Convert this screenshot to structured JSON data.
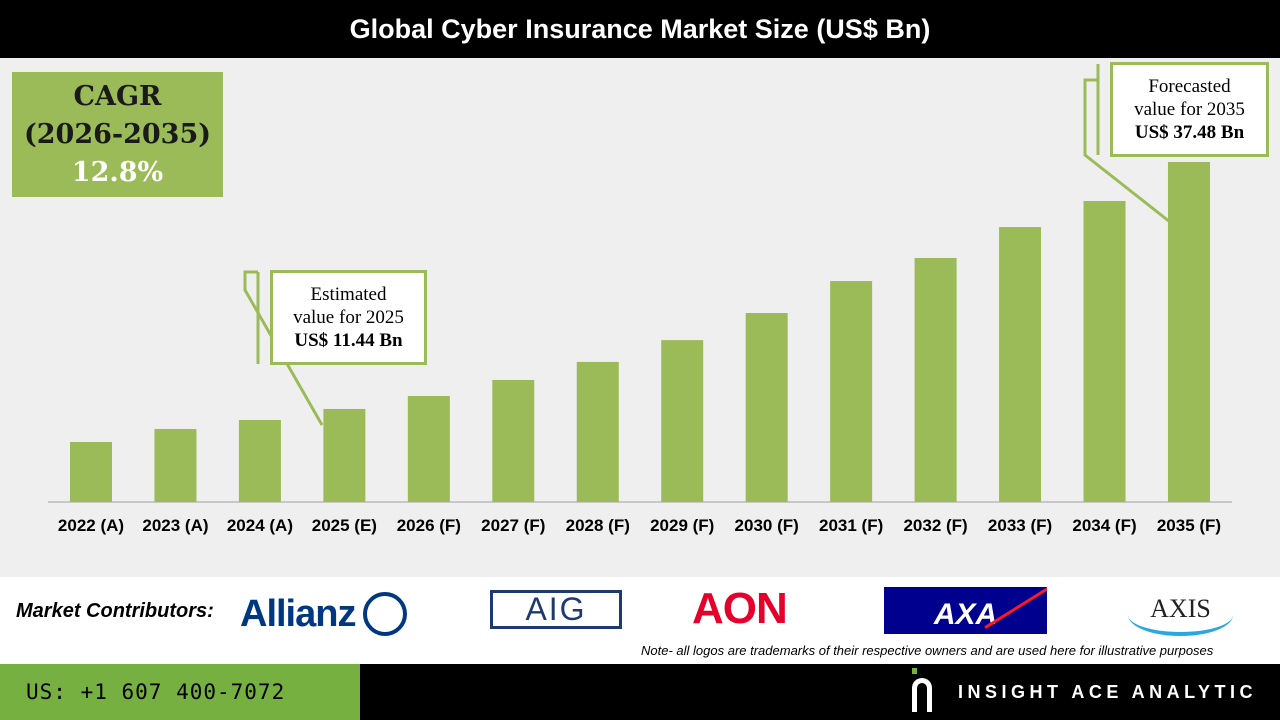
{
  "title": "Global Cyber Insurance Market Size (US$ Bn)",
  "cagr": {
    "label": "CAGR",
    "period": "(2026-2035)",
    "value": "12.8%"
  },
  "callouts": {
    "estimated": {
      "line1": "Estimated",
      "line2": "value for 2025",
      "line3": "US$ 11.44 Bn"
    },
    "forecast": {
      "line1": "Forecasted",
      "line2": "value for 2035",
      "line3": "US$ 37.48 Bn"
    }
  },
  "chart_data": {
    "type": "bar",
    "title": "Global Cyber Insurance Market Size (US$ Bn)",
    "categories": [
      "2022 (A)",
      "2023 (A)",
      "2024 (A)",
      "2025 (E)",
      "2026 (F)",
      "2027 (F)",
      "2028 (F)",
      "2029 (F)",
      "2030 (F)",
      "2031 (F)",
      "2032 (F)",
      "2033 (F)",
      "2034 (F)",
      "2035 (F)"
    ],
    "values": [
      7.96,
      9.33,
      10.28,
      11.44,
      12.81,
      14.5,
      16.4,
      18.7,
      21.56,
      24.93,
      27.36,
      30.62,
      33.37,
      37.48
    ],
    "xlabel": "",
    "ylabel": "US$ Bn",
    "ylim": [
      1.63,
      37.48
    ],
    "grid": false,
    "color": "#9bbb59"
  },
  "contributors": {
    "label": "Market Contributors:",
    "logos": [
      "Allianz",
      "AIG",
      "AON",
      "AXA",
      "AXIS"
    ]
  },
  "note": "Note- all logos are trademarks of their respective owners and are used here for illustrative purposes",
  "footer": {
    "phone": "US: +1 607 400-7072",
    "brand": "INSIGHT ACE ANALYTIC"
  }
}
